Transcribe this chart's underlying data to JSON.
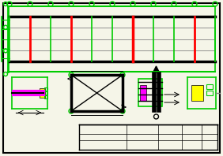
{
  "bg_color": "#f5f5e8",
  "border_color": "#000000",
  "green": "#00cc00",
  "red": "#ff0000",
  "black": "#000000",
  "gray": "#808080",
  "magenta": "#ff00ff",
  "yellow": "#ffff00",
  "cyan": "#00ffff",
  "white": "#ffffff",
  "figsize": [
    2.82,
    1.98
  ],
  "dpi": 100,
  "title": ""
}
